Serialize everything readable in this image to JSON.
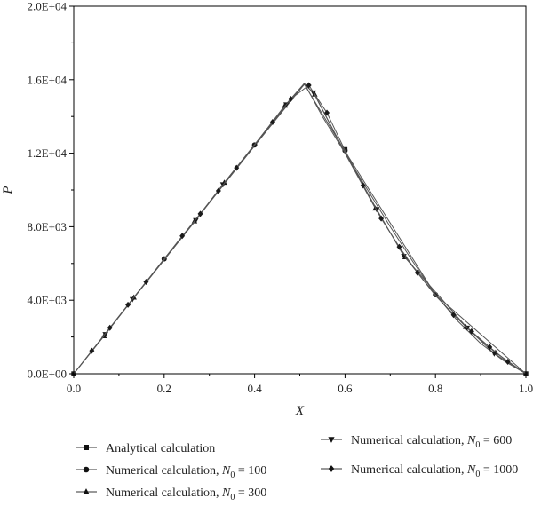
{
  "chart_data": {
    "type": "line",
    "xlabel": "X",
    "ylabel": "P",
    "xlim": [
      0,
      1
    ],
    "ylim": [
      0,
      20000
    ],
    "x_ticks": [
      "0.0",
      "0.2",
      "0.4",
      "0.6",
      "0.8",
      "1.0"
    ],
    "y_ticks": [
      "0.0E+00",
      "4.0E+03",
      "8.0E+03",
      "1.2E+04",
      "1.6E+04",
      "2.0E+04"
    ],
    "grid": false,
    "legend_position": "bottom",
    "series": [
      {
        "name": "Analytical calculation",
        "marker": "square",
        "points": [
          [
            0.0,
            0
          ],
          [
            0.05,
            1550
          ],
          [
            0.1,
            3100
          ],
          [
            0.15,
            4650
          ],
          [
            0.2,
            6200
          ],
          [
            0.25,
            7750
          ],
          [
            0.3,
            9300
          ],
          [
            0.35,
            10850
          ],
          [
            0.4,
            12400
          ],
          [
            0.45,
            13950
          ],
          [
            0.5,
            15500
          ],
          [
            0.51,
            15800
          ],
          [
            0.55,
            14000
          ],
          [
            0.6,
            12000
          ],
          [
            0.65,
            10000
          ],
          [
            0.7,
            8000
          ],
          [
            0.75,
            6100
          ],
          [
            0.8,
            4300
          ],
          [
            0.85,
            2850
          ],
          [
            0.9,
            1650
          ],
          [
            0.95,
            720
          ],
          [
            1.0,
            0
          ]
        ],
        "marker_points": [
          [
            0.0,
            0
          ],
          [
            0.6,
            12200
          ],
          [
            1.0,
            0
          ]
        ]
      },
      {
        "name": "Numerical calculation, N0 = 100",
        "marker": "circle",
        "points": [
          [
            0.0,
            0
          ],
          [
            0.2,
            6250
          ],
          [
            0.4,
            12400
          ],
          [
            0.51,
            15750
          ],
          [
            0.6,
            12100
          ],
          [
            0.8,
            4300
          ],
          [
            1.0,
            0
          ]
        ],
        "marker_points": [
          [
            0.2,
            6250
          ],
          [
            0.4,
            12450
          ],
          [
            0.6,
            12150
          ],
          [
            0.8,
            4300
          ]
        ]
      },
      {
        "name": "Numerical calculation, N0 = 300",
        "marker": "triangle-up",
        "points": [
          [
            0.0,
            0
          ],
          [
            0.067,
            2050
          ],
          [
            0.133,
            4150
          ],
          [
            0.2,
            6200
          ],
          [
            0.267,
            8300
          ],
          [
            0.333,
            10400
          ],
          [
            0.4,
            12450
          ],
          [
            0.467,
            14600
          ],
          [
            0.51,
            15800
          ],
          [
            0.533,
            15200
          ],
          [
            0.6,
            12000
          ],
          [
            0.667,
            9000
          ],
          [
            0.733,
            6350
          ],
          [
            0.8,
            4250
          ],
          [
            0.867,
            2550
          ],
          [
            0.933,
            1150
          ],
          [
            1.0,
            0
          ]
        ],
        "marker_points": [
          [
            0.067,
            2050
          ],
          [
            0.133,
            4150
          ],
          [
            0.267,
            8300
          ],
          [
            0.333,
            10400
          ],
          [
            0.467,
            14600
          ],
          [
            0.533,
            15200
          ],
          [
            0.667,
            9000
          ],
          [
            0.733,
            6350
          ],
          [
            0.867,
            2550
          ],
          [
            0.933,
            1150
          ]
        ]
      },
      {
        "name": "Numerical calculation, N0 = 600",
        "marker": "triangle-down",
        "points": [
          [
            0.0,
            0
          ],
          [
            0.07,
            2150
          ],
          [
            0.13,
            4050
          ],
          [
            0.27,
            8350
          ],
          [
            0.33,
            10300
          ],
          [
            0.47,
            14650
          ],
          [
            0.51,
            15750
          ],
          [
            0.53,
            15300
          ],
          [
            0.6,
            12050
          ],
          [
            0.67,
            8950
          ],
          [
            0.73,
            6400
          ],
          [
            0.87,
            2500
          ],
          [
            0.93,
            1100
          ],
          [
            1.0,
            0
          ]
        ],
        "marker_points": [
          [
            0.07,
            2150
          ],
          [
            0.13,
            4050
          ],
          [
            0.27,
            8350
          ],
          [
            0.33,
            10300
          ],
          [
            0.47,
            14650
          ],
          [
            0.53,
            15300
          ],
          [
            0.67,
            8950
          ],
          [
            0.73,
            6400
          ],
          [
            0.87,
            2500
          ],
          [
            0.93,
            1100
          ]
        ]
      },
      {
        "name": "Numerical calculation, N0 = 1000",
        "marker": "diamond",
        "points": [
          [
            0.0,
            0
          ],
          [
            0.04,
            1250
          ],
          [
            0.08,
            2500
          ],
          [
            0.12,
            3750
          ],
          [
            0.16,
            5000
          ],
          [
            0.2,
            6250
          ],
          [
            0.24,
            7500
          ],
          [
            0.28,
            8700
          ],
          [
            0.32,
            9950
          ],
          [
            0.36,
            11200
          ],
          [
            0.4,
            12450
          ],
          [
            0.44,
            13700
          ],
          [
            0.48,
            14950
          ],
          [
            0.52,
            15700
          ],
          [
            0.56,
            14200
          ],
          [
            0.6,
            12150
          ],
          [
            0.64,
            10250
          ],
          [
            0.68,
            8450
          ],
          [
            0.72,
            6900
          ],
          [
            0.76,
            5500
          ],
          [
            0.8,
            4300
          ],
          [
            0.84,
            3200
          ],
          [
            0.88,
            2300
          ],
          [
            0.92,
            1450
          ],
          [
            0.96,
            650
          ],
          [
            1.0,
            0
          ]
        ],
        "marker_points": [
          [
            0.04,
            1250
          ],
          [
            0.08,
            2500
          ],
          [
            0.12,
            3750
          ],
          [
            0.16,
            5000
          ],
          [
            0.24,
            7500
          ],
          [
            0.28,
            8700
          ],
          [
            0.32,
            9950
          ],
          [
            0.36,
            11200
          ],
          [
            0.44,
            13700
          ],
          [
            0.48,
            14950
          ],
          [
            0.52,
            15700
          ],
          [
            0.56,
            14200
          ],
          [
            0.64,
            10250
          ],
          [
            0.68,
            8450
          ],
          [
            0.72,
            6900
          ],
          [
            0.76,
            5500
          ],
          [
            0.84,
            3200
          ],
          [
            0.88,
            2300
          ],
          [
            0.92,
            1450
          ],
          [
            0.96,
            650
          ]
        ]
      }
    ],
    "legend": [
      {
        "marker": "square",
        "text": "Analytical calculation",
        "subscript_var": "",
        "suffix": ""
      },
      {
        "marker": "circle",
        "text": "Numerical calculation, ",
        "subscript_var": "N",
        "subscript": "0",
        "suffix": " = 100"
      },
      {
        "marker": "triangle-up",
        "text": "Numerical calculation, ",
        "subscript_var": "N",
        "subscript": "0",
        "suffix": " = 300"
      },
      {
        "marker": "triangle-down",
        "text": "Numerical calculation, ",
        "subscript_var": "N",
        "subscript": "0",
        "suffix": " = 600"
      },
      {
        "marker": "diamond",
        "text": "Numerical calculation, ",
        "subscript_var": "N",
        "subscript": "0",
        "suffix": " = 1000"
      }
    ],
    "colors": {
      "line": "#555555",
      "marker": "#1a1a1a",
      "axis": "#000000"
    }
  }
}
